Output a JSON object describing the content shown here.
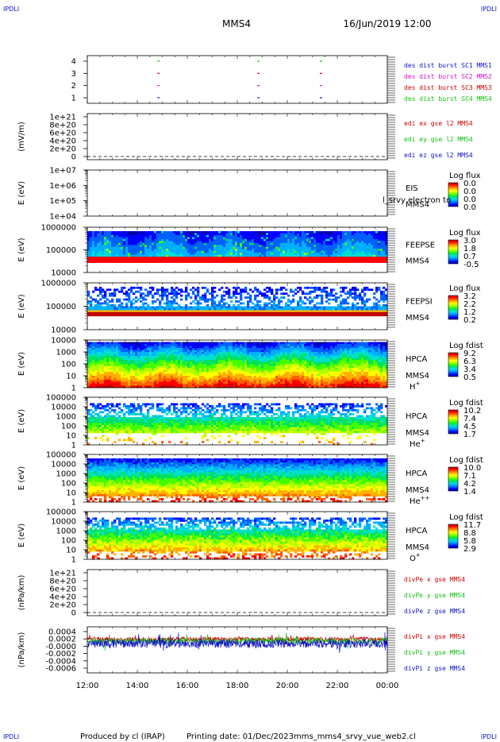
{
  "header": {
    "corner_left_top": "IPDLI",
    "corner_right_top": "IPDLI",
    "corner_left_bottom": "IPDLI",
    "corner_right_bottom": "IPDLI",
    "title": "MMS4",
    "datetime": "16/Jun/2019 12:00"
  },
  "footer": {
    "produced": "Produced by cl (IRAP)",
    "printed": "Printing date: 01/Dec/2023",
    "filename": "mms_mms4_srvy_vue_web2.cl"
  },
  "time_axis": {
    "ticks": [
      "12:00",
      "14:00",
      "16:00",
      "18:00",
      "20:00",
      "22:00",
      "00:00"
    ]
  },
  "colors": {
    "blue": "#1010c8",
    "red": "#d00000",
    "green": "#10c010",
    "magenta": "#d010d0"
  },
  "chart_data": [
    {
      "type": "line",
      "id": "burst",
      "yticks": [
        "4",
        "3",
        "2",
        "1"
      ],
      "legend": [
        {
          "text": "des dist burst SC1 MMS1",
          "color": "#1010c8"
        },
        {
          "text": "des dist burst SC2 MMS2",
          "color": "#d010d0"
        },
        {
          "text": "des dist burst SC3 MMS3",
          "color": "#d00000"
        },
        {
          "text": "des dist burst SC4 MMS4",
          "color": "#10c010"
        }
      ],
      "bursts_x_hours": [
        14.8,
        18.8,
        21.3
      ]
    },
    {
      "type": "line",
      "id": "edi",
      "ylabel": "(mV/m)",
      "yticks": [
        "1e+21",
        "8e+20",
        "6e+20",
        "4e+20",
        "2e+20",
        "0"
      ],
      "legend": [
        {
          "text": "edi ex gse l2 MMS4",
          "color": "#d00000"
        },
        {
          "text": "edi ey gse l2 MMS4",
          "color": "#10c010"
        },
        {
          "text": "edi ez gse l2 MMS4",
          "color": "#1010c8"
        }
      ]
    },
    {
      "type": "heatmap",
      "id": "eis",
      "ylabel": "E (eV)",
      "yticks": [
        "1e+07",
        "1e+06",
        "1e+05",
        "1e+04"
      ],
      "labels": [
        "EIS",
        "MMS4"
      ],
      "overlay": "l_srvy electron to",
      "colorbar": {
        "title": "Log flux",
        "ticks": [
          "0.0",
          "0.0",
          "0.0",
          "0.0"
        ]
      }
    },
    {
      "type": "heatmap",
      "id": "feepse",
      "ylabel": "E (eV)",
      "yticks": [
        "1000000",
        "100000",
        "10000"
      ],
      "labels": [
        "FEEPSE",
        "MMS4"
      ],
      "colorbar": {
        "title": "Log flux",
        "ticks": [
          "3.0",
          "1.8",
          "0.7",
          "-0.5"
        ]
      }
    },
    {
      "type": "heatmap",
      "id": "feepsi",
      "ylabel": "E (eV)",
      "yticks": [
        "1000000",
        "100000",
        "10000"
      ],
      "labels": [
        "FEEPSI",
        "MMS4"
      ],
      "colorbar": {
        "title": "Log flux",
        "ticks": [
          "3.2",
          "2.2",
          "1.2",
          "0.2"
        ]
      }
    },
    {
      "type": "heatmap",
      "id": "hpca_h",
      "ylabel": "E (eV)",
      "yticks": [
        "10000",
        "1000",
        "100",
        "10",
        "1"
      ],
      "labels": [
        "HPCA",
        "MMS4"
      ],
      "species": "H",
      "species_sup": "+",
      "colorbar": {
        "title": "Log fdist",
        "ticks": [
          "9.2",
          "6.3",
          "3.4",
          "0.5"
        ]
      }
    },
    {
      "type": "heatmap",
      "id": "hpca_he",
      "ylabel": "E (eV)",
      "yticks": [
        "100000",
        "10000",
        "1000",
        "100",
        "10",
        "1"
      ],
      "labels": [
        "HPCA",
        "MMS4"
      ],
      "species": "He",
      "species_sup": "+",
      "colorbar": {
        "title": "Log fdist",
        "ticks": [
          "10.2",
          "7.4",
          "4.5",
          "1.7"
        ]
      }
    },
    {
      "type": "heatmap",
      "id": "hpca_hepp",
      "ylabel": "E (eV)",
      "yticks": [
        "100000",
        "10000",
        "1000",
        "100",
        "10",
        "1"
      ],
      "labels": [
        "HPCA",
        "MMS4"
      ],
      "species": "He",
      "species_sup": "++",
      "colorbar": {
        "title": "Log fdist",
        "ticks": [
          "10.0",
          "7.1",
          "4.2",
          "1.4"
        ]
      }
    },
    {
      "type": "heatmap",
      "id": "hpca_o",
      "ylabel": "E (eV)",
      "yticks": [
        "100000",
        "10000",
        "1000",
        "100",
        "10",
        "1"
      ],
      "labels": [
        "HPCA",
        "MMS4"
      ],
      "species": "O",
      "species_sup": "+",
      "colorbar": {
        "title": "Log fdist",
        "ticks": [
          "11.7",
          "8.8",
          "5.8",
          "2.9"
        ]
      }
    },
    {
      "type": "line",
      "id": "divpe",
      "ylabel": "(nPa/km)",
      "yticks": [
        "1e+21",
        "8e+20",
        "6e+20",
        "4e+20",
        "2e+20",
        "0"
      ],
      "legend": [
        {
          "text": "divPe x gse MMS4",
          "color": "#d00000"
        },
        {
          "text": "divPe y gse MMS4",
          "color": "#10c010"
        },
        {
          "text": "divPe z gse MMS4",
          "color": "#1010c8"
        }
      ]
    },
    {
      "type": "line",
      "id": "divpi",
      "ylabel": "(nPa/km)",
      "yticks": [
        "0.0004",
        "0.0002",
        "-0.0000",
        "-0.0002",
        "-0.0004",
        "-0.0006"
      ],
      "legend": [
        {
          "text": "divPi x gse MMS4",
          "color": "#d00000"
        },
        {
          "text": "divPi y gse MMS4",
          "color": "#10c010"
        },
        {
          "text": "divPi z gse MMS4",
          "color": "#1010c8"
        }
      ]
    }
  ]
}
